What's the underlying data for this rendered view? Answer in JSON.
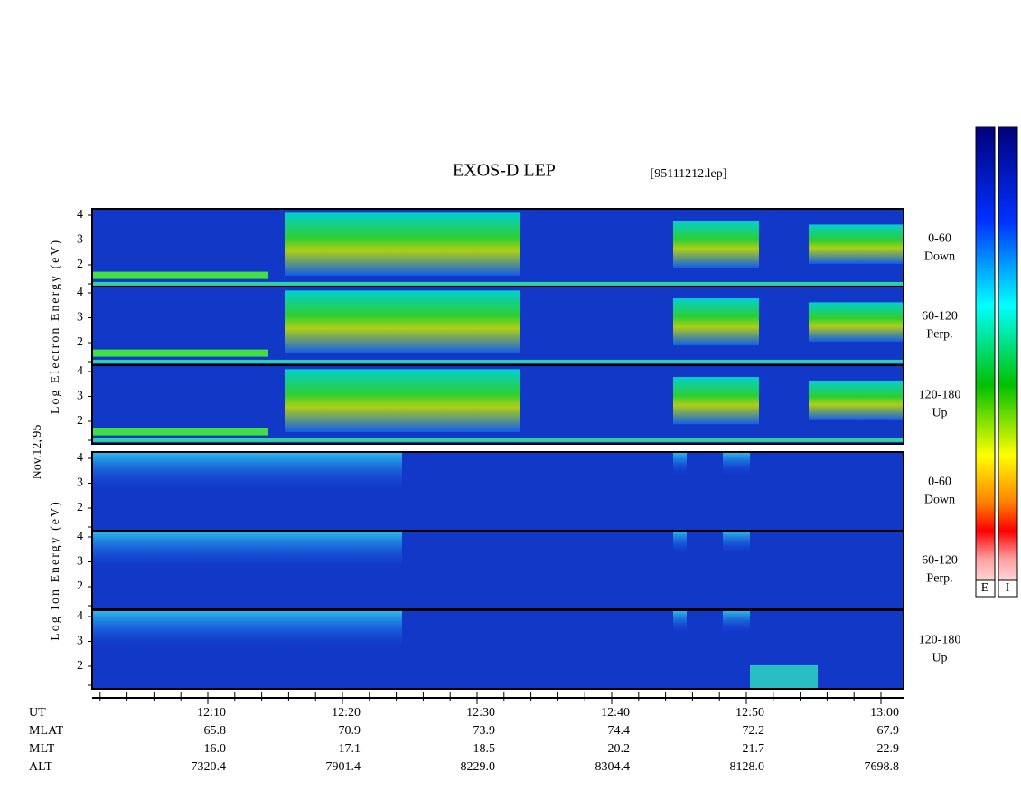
{
  "header": {
    "title": "EXOS-D LEP",
    "file": "[95111212.lep]",
    "date": "Nov.12,'95"
  },
  "electron": {
    "ylabel": "Log Electron Energy (eV)",
    "panels": [
      {
        "pitch": "0-60",
        "dir": "Down"
      },
      {
        "pitch": "60-120",
        "dir": "Perp."
      },
      {
        "pitch": "120-180",
        "dir": "Up"
      }
    ]
  },
  "ion": {
    "ylabel": "Log Ion Energy (eV)",
    "panels": [
      {
        "pitch": "0-60",
        "dir": "Down"
      },
      {
        "pitch": "60-120",
        "dir": "Perp."
      },
      {
        "pitch": "120-180",
        "dir": "Up"
      }
    ]
  },
  "yticks": [
    "4",
    "3",
    "2"
  ],
  "colorbars": [
    "E",
    "I"
  ],
  "ephemeris": {
    "rows": [
      {
        "name": "UT",
        "values": [
          "12:10",
          "12:20",
          "12:30",
          "12:40",
          "12:50",
          "13:00"
        ]
      },
      {
        "name": "MLAT",
        "values": [
          "65.8",
          "70.9",
          "73.9",
          "74.4",
          "72.2",
          "67.9"
        ]
      },
      {
        "name": "MLT",
        "values": [
          "16.0",
          "17.1",
          "18.5",
          "20.2",
          "21.7",
          "22.9"
        ]
      },
      {
        "name": "ALT",
        "values": [
          "7320.4",
          "7901.4",
          "8229.0",
          "8304.4",
          "8128.0",
          "7698.8"
        ]
      }
    ]
  }
}
